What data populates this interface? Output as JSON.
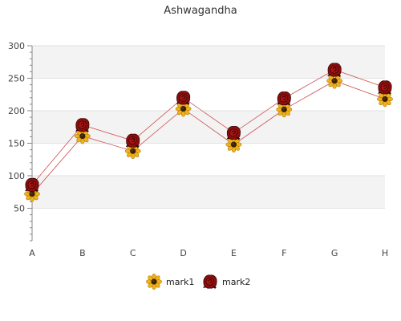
{
  "chart_data": {
    "type": "line",
    "title": "Ashwagandha",
    "categories": [
      "A",
      "B",
      "C",
      "D",
      "E",
      "F",
      "G",
      "H"
    ],
    "ylim": [
      0,
      300
    ],
    "yticks": [
      50,
      100,
      150,
      200,
      250,
      300
    ],
    "grid": "horizontal bands",
    "legend_position": "bottom-center",
    "series": [
      {
        "name": "mark1",
        "values": [
          72,
          161,
          138,
          203,
          148,
          202,
          246,
          218
        ],
        "marker": "sunflower",
        "color": "#ecb41e"
      },
      {
        "name": "mark2",
        "values": [
          86,
          178,
          154,
          220,
          166,
          219,
          263,
          236
        ],
        "marker": "rose",
        "color": "#8b0e0e"
      }
    ],
    "line_color": "#d05050",
    "band_color": "#f3f3f3"
  }
}
